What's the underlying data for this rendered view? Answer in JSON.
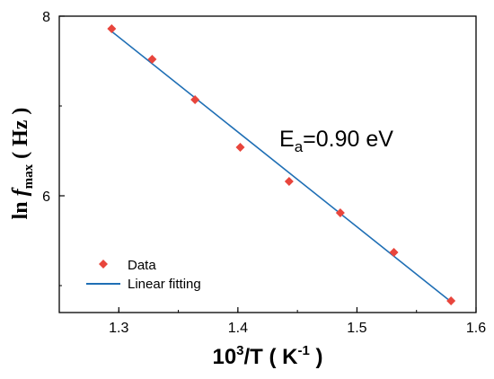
{
  "chart_data": {
    "type": "scatter",
    "xlim": [
      1.25,
      1.6
    ],
    "ylim": [
      4.7,
      8.0
    ],
    "xticks": [
      "1.3",
      "1.4",
      "1.5",
      "1.6"
    ],
    "yticks": [
      "6",
      "8"
    ],
    "grid": false,
    "legend_position": "bottom-left",
    "xlabel": {
      "base": "10",
      "sup": "3",
      "mid": "/T ( K",
      "sup2": "-1",
      "end": " )"
    },
    "ylabel": {
      "ln": "ln ",
      "f": "f",
      "sub": "max",
      "unit": " ( Hz )"
    },
    "annotation": {
      "main": "E",
      "sub": "a",
      "rest": "=0.90 eV"
    },
    "series": [
      {
        "name": "Data",
        "kind": "scatter",
        "color": "#e8453c",
        "marker": "diamond",
        "x": [
          1.294,
          1.328,
          1.364,
          1.402,
          1.443,
          1.486,
          1.531,
          1.579
        ],
        "y": [
          7.86,
          7.52,
          7.07,
          6.54,
          6.16,
          5.81,
          5.37,
          4.83
        ]
      },
      {
        "name": "Linear fitting",
        "kind": "line",
        "color": "#1f6fb5",
        "x": [
          1.294,
          1.579
        ],
        "y": [
          7.83,
          4.82
        ]
      }
    ]
  }
}
